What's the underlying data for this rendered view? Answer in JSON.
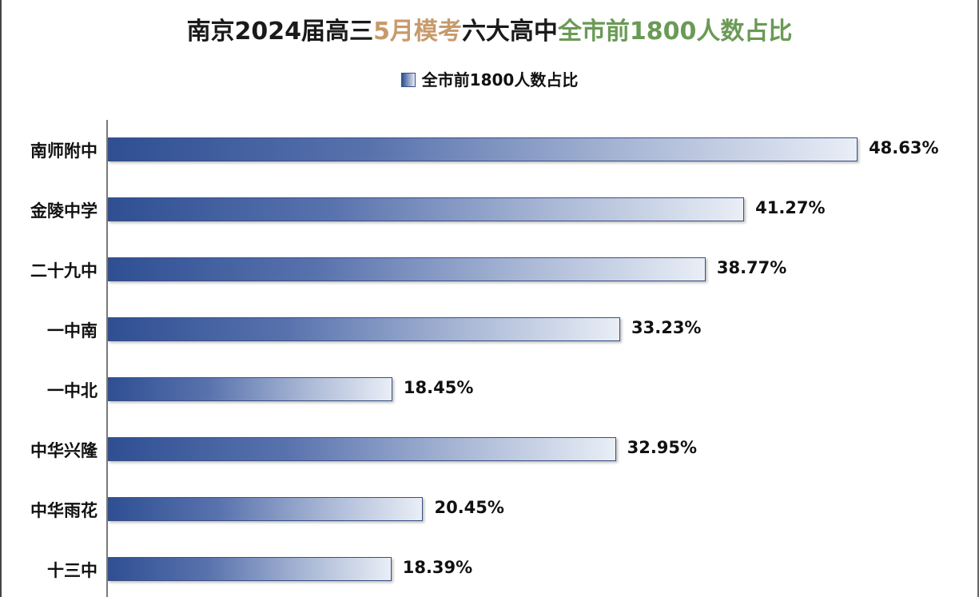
{
  "chart_data": {
    "type": "bar",
    "orientation": "horizontal",
    "title_segments": [
      {
        "text": "南京2024届高三",
        "color": "#1a1a1a"
      },
      {
        "text": "5月模考",
        "color": "#c79a6b"
      },
      {
        "text": "六大高中",
        "color": "#1a1a1a"
      },
      {
        "text": "全市前1800人数占比",
        "color": "#6a9a55"
      }
    ],
    "legend": {
      "label": "全市前1800人数占比",
      "placement": "top-center"
    },
    "categories": [
      "南师附中",
      "金陵中学",
      "二十九中",
      "一中南",
      "一中北",
      "中华兴隆",
      "中华雨花",
      "十三中"
    ],
    "series": [
      {
        "name": "全市前1800人数占比",
        "values": [
          48.63,
          41.27,
          38.77,
          33.23,
          18.45,
          32.95,
          20.45,
          18.39
        ]
      }
    ],
    "value_labels": [
      "48.63%",
      "41.27%",
      "38.77%",
      "33.23%",
      "18.45%",
      "32.95%",
      "20.45%",
      "18.39%"
    ],
    "unit": "%",
    "colors": {
      "bar_dark": "#2f4f93",
      "bar_light": "#e9eef6",
      "bar_border": "#3a4f82"
    },
    "grid": false
  }
}
